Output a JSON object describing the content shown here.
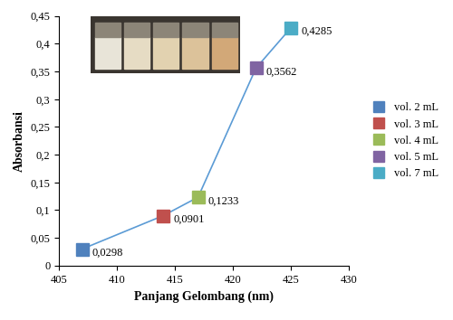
{
  "chart_data": {
    "type": "line",
    "x_label": "Panjang Gelombang (nm)",
    "y_label": "Absorbansi",
    "x": [
      407,
      414,
      417,
      422,
      425
    ],
    "values": [
      0.0298,
      0.0901,
      0.1233,
      0.3562,
      0.4285
    ],
    "value_labels": [
      "0,0298",
      "0,0901",
      "0,1233",
      "0,3562",
      "0,4285"
    ],
    "names": [
      "vol. 2 mL",
      "vol. 3 mL",
      "vol. 4 mL",
      "vol. 5 mL",
      "vol. 7 mL"
    ],
    "color": "#5b9bd5",
    "colors": [
      "#4f81bd",
      "#c0504d",
      "#9bbb59",
      "#8064a2",
      "#4bacc6"
    ],
    "marker": "s",
    "data_labels": true,
    "legend": "right",
    "grid": false,
    "xlim": [
      405,
      430
    ],
    "xticks": [
      405,
      410,
      415,
      420,
      425,
      430
    ],
    "ylim": [
      0,
      0.45
    ],
    "yticks": [
      {
        "value": 0,
        "label": "0"
      },
      {
        "value": 0.05,
        "label": "0,05"
      },
      {
        "value": 0.1,
        "label": "0,1"
      },
      {
        "value": 0.15,
        "label": "0,15"
      },
      {
        "value": 0.2,
        "label": "0,2"
      },
      {
        "value": 0.25,
        "label": "0,25"
      },
      {
        "value": 0.3,
        "label": "0,3"
      },
      {
        "value": 0.35,
        "label": "0,35"
      },
      {
        "value": 0.4,
        "label": "0,4"
      },
      {
        "value": 0.45,
        "label": "0,45"
      }
    ]
  }
}
